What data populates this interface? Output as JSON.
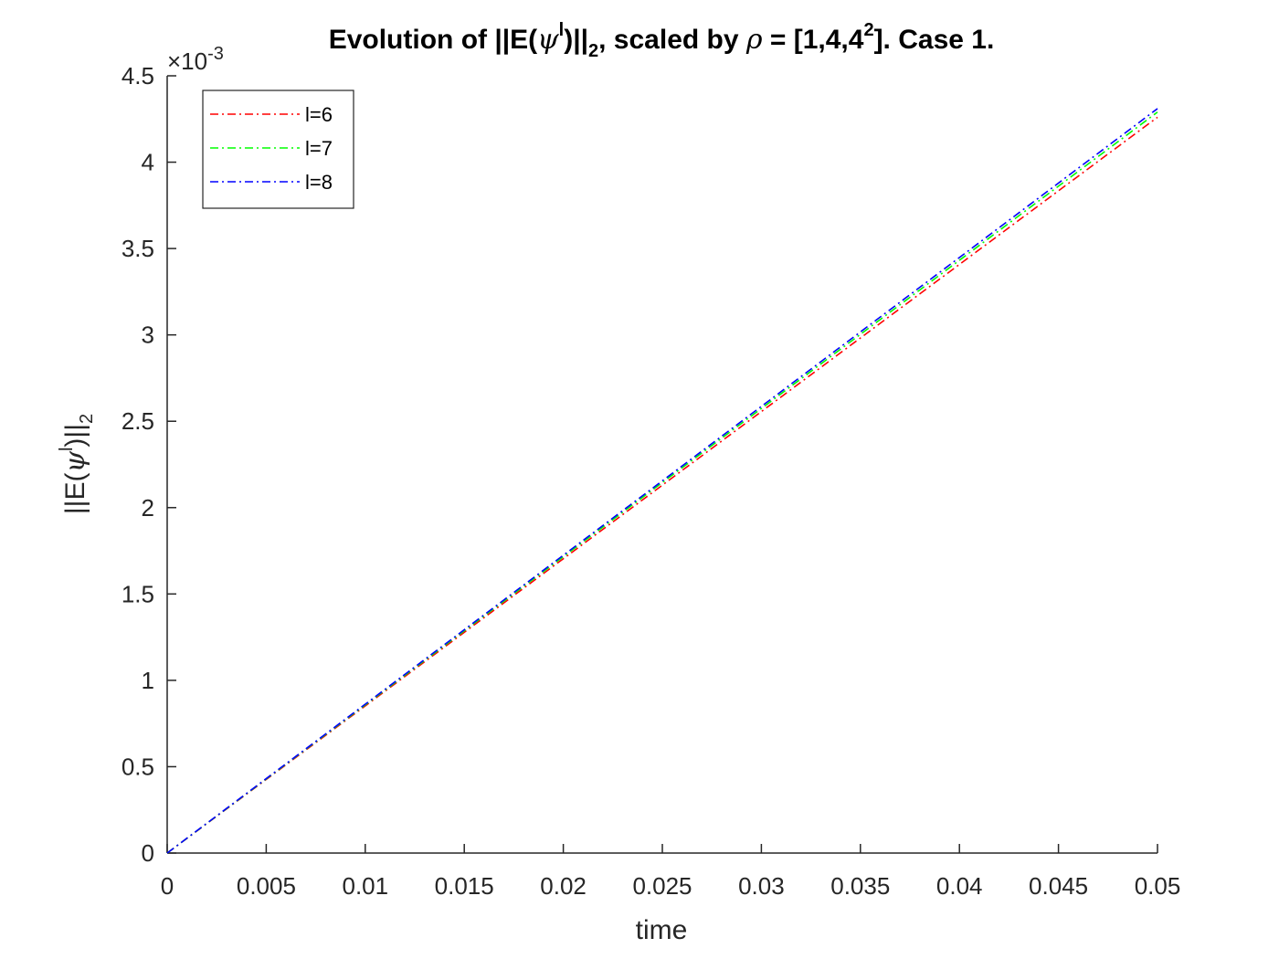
{
  "chart_data": {
    "type": "line",
    "title": {
      "prefix": "Evolution of ||E(",
      "psi": "ψ",
      "sup_l": "l",
      "mid1": ")||",
      "sub_2": "2",
      "mid2": ", scaled by ",
      "rho": "ρ",
      "mid3": " = [1,4,4",
      "sup_2": "2",
      "suffix": "]. Case 1."
    },
    "xlabel": "time",
    "ylabel": {
      "prefix": "||E(",
      "psi": "ψ",
      "sup_l": "l",
      "mid": ")||",
      "sub_2": "2"
    },
    "y_exponent": {
      "times": "×10",
      "power": "-3"
    },
    "xlim": [
      0,
      0.05
    ],
    "ylim": [
      0,
      4.5
    ],
    "x_ticks": [
      "0",
      "0.005",
      "0.01",
      "0.015",
      "0.02",
      "0.025",
      "0.03",
      "0.035",
      "0.04",
      "0.045",
      "0.05"
    ],
    "y_ticks": [
      "0",
      "0.5",
      "1",
      "1.5",
      "2",
      "2.5",
      "3",
      "3.5",
      "4",
      "4.5"
    ],
    "grid": false,
    "legend_position": "top-left",
    "x": [
      0,
      0.05
    ],
    "series": [
      {
        "name": "l=6",
        "color": "#ff0000",
        "values": [
          0,
          4.26
        ]
      },
      {
        "name": "l=7",
        "color": "#00ff00",
        "values": [
          0,
          4.29
        ]
      },
      {
        "name": "l=8",
        "color": "#0000ff",
        "values": [
          0,
          4.31
        ]
      }
    ]
  }
}
